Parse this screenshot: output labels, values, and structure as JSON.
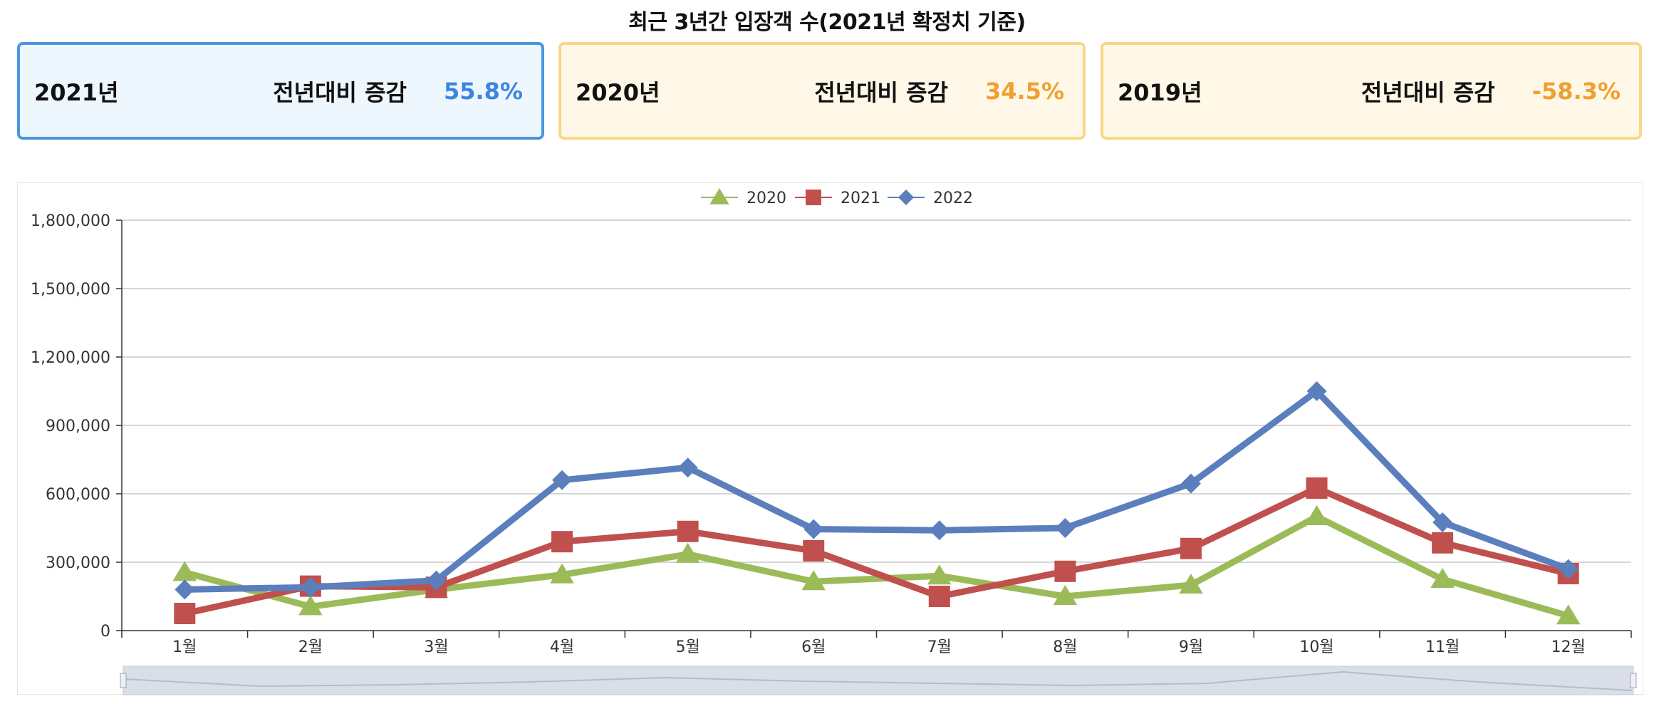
{
  "page": {
    "title": "최근 3년간 입장객 수(2021년 확정치 기준)"
  },
  "cards": [
    {
      "year": "2021년",
      "label": "전년대비 증감",
      "value": "55.8%"
    },
    {
      "year": "2020년",
      "label": "전년대비 증감",
      "value": "34.5%"
    },
    {
      "year": "2019년",
      "label": "전년대비 증감",
      "value": "-58.3%"
    }
  ],
  "colors": {
    "s2020": "#9bbb59",
    "s2021": "#c0504d",
    "s2022": "#5b7fbd"
  },
  "chart_data": {
    "type": "line",
    "title": "",
    "xlabel": "",
    "ylabel": "",
    "categories": [
      "1월",
      "2월",
      "3월",
      "4월",
      "5월",
      "6월",
      "7월",
      "8월",
      "9월",
      "10월",
      "11월",
      "12월"
    ],
    "ylim": [
      0,
      1800000
    ],
    "yticks": [
      0,
      300000,
      600000,
      900000,
      1200000,
      1500000,
      1800000
    ],
    "ytick_labels": [
      "0",
      "300,000",
      "600,000",
      "900,000",
      "1,200,000",
      "1,500,000",
      "1,800,000"
    ],
    "legend_position": "top-center",
    "series": [
      {
        "name": "2020",
        "marker": "triangle",
        "values": [
          255000,
          105000,
          180000,
          245000,
          335000,
          215000,
          240000,
          150000,
          200000,
          500000,
          225000,
          65000
        ]
      },
      {
        "name": "2021",
        "marker": "square",
        "values": [
          75000,
          195000,
          190000,
          390000,
          435000,
          350000,
          150000,
          260000,
          360000,
          625000,
          385000,
          250000
        ]
      },
      {
        "name": "2022",
        "marker": "diamond",
        "values": [
          180000,
          190000,
          220000,
          660000,
          715000,
          445000,
          440000,
          450000,
          645000,
          1050000,
          475000,
          270000
        ]
      }
    ]
  }
}
